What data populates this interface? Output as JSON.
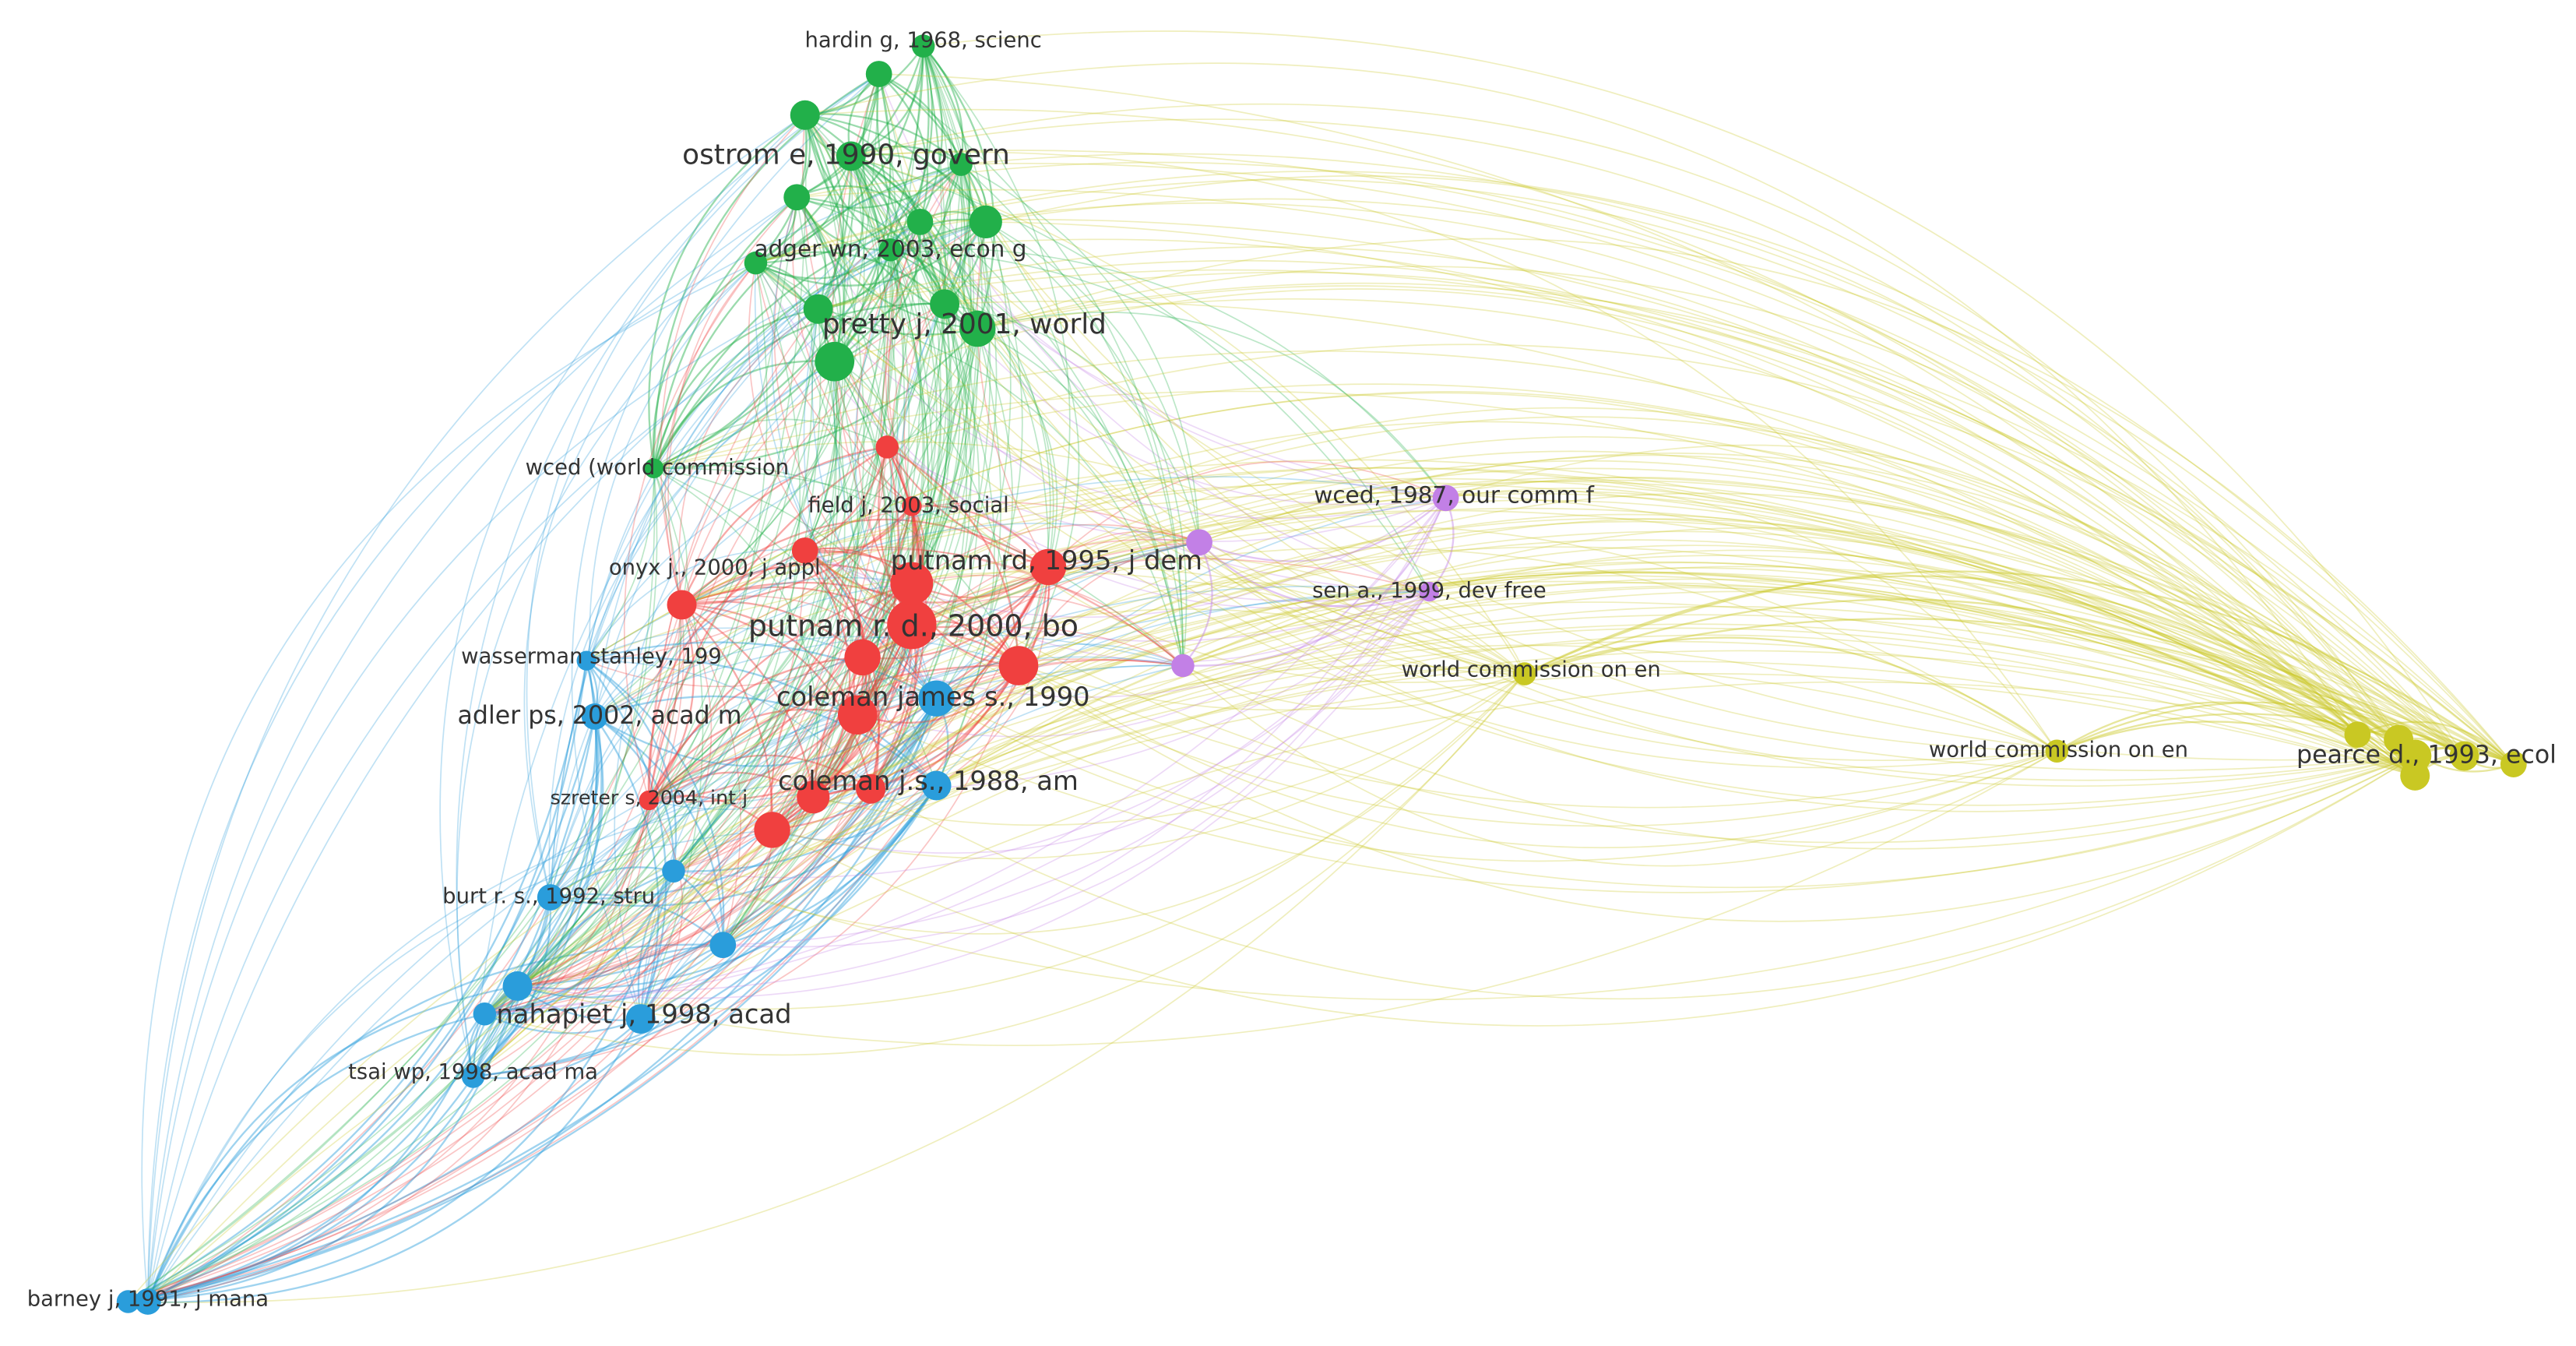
{
  "nodes": [
    {
      "label": "hardin g, 1968, scienc"
    },
    {
      "label": "ostrom e, 1990, govern"
    },
    {
      "label": "adger wn, 2003, econ g"
    },
    {
      "label": "pretty j, 2001, world"
    },
    {
      "label": "wced (world commission"
    },
    {
      "label": "field j, 2003, social"
    },
    {
      "label": "onyx j., 2000, j appl"
    },
    {
      "label": "putnam rd, 1995, j dem"
    },
    {
      "label": "putnam r. d., 2000, bo"
    },
    {
      "label": "wasserman stanley, 199"
    },
    {
      "label": "coleman james s., 1990"
    },
    {
      "label": "adler ps, 2002, acad m"
    },
    {
      "label": "coleman j.s., 1988, am"
    },
    {
      "label": "szreter s, 2004, int j"
    },
    {
      "label": "burt r. s., 1992, stru"
    },
    {
      "label": "nahapiet j, 1998, acad"
    },
    {
      "label": "tsai wp, 1998, acad ma"
    },
    {
      "label": "barney j, 1991, j mana"
    },
    {
      "label": "wced, 1987, our comm f"
    },
    {
      "label": "sen a., 1999, dev free"
    },
    {
      "label": "world commission on en"
    },
    {
      "label": "world commission on en"
    },
    {
      "label": "pearce d., 1993, ecol"
    }
  ]
}
